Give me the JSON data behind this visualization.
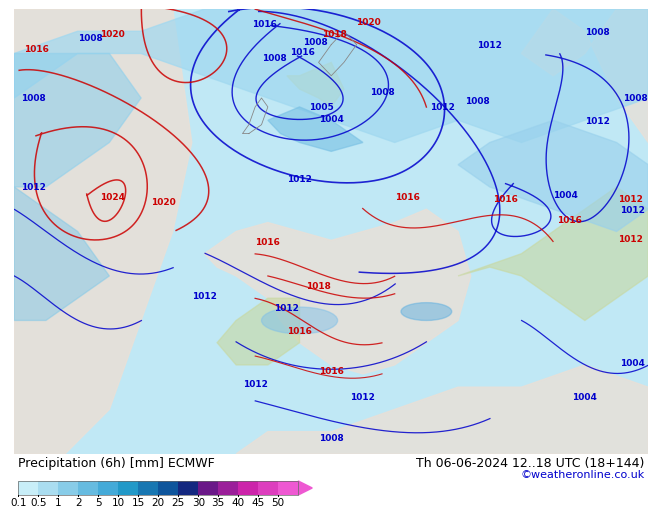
{
  "title_left": "Precipitation (6h) [mm] ECMWF",
  "title_right": "Th 06-06-2024 12..18 UTC (18+144)",
  "credit": "©weatheronline.co.uk",
  "colorbar_labels": [
    "0.1",
    "0.5",
    "1",
    "2",
    "5",
    "10",
    "15",
    "20",
    "25",
    "30",
    "35",
    "40",
    "45",
    "50"
  ],
  "colorbar_colors": [
    "#c8eef8",
    "#aaddf0",
    "#88cce8",
    "#66bbe0",
    "#44aad8",
    "#2299c8",
    "#1877b2",
    "#0e559c",
    "#142880",
    "#6a1888",
    "#9b1f9a",
    "#cc24aa",
    "#dd3ebe",
    "#ee58d2"
  ],
  "map_bg_color": "#f0e8e0",
  "ocean_color": "#c0e8f5",
  "precip_light_color": "#a8dff0",
  "precip_mid_color": "#70c0e0",
  "land_color": "#e8e0d8",
  "land_green_color": "#c8d8a0",
  "bottom_bg": "#ffffff",
  "credit_color": "#0000cc",
  "font_size_title": 9.0,
  "font_size_credit": 8.0,
  "font_size_ticks": 7.5,
  "blue_contour_color": "#0000cc",
  "red_contour_color": "#cc0000"
}
